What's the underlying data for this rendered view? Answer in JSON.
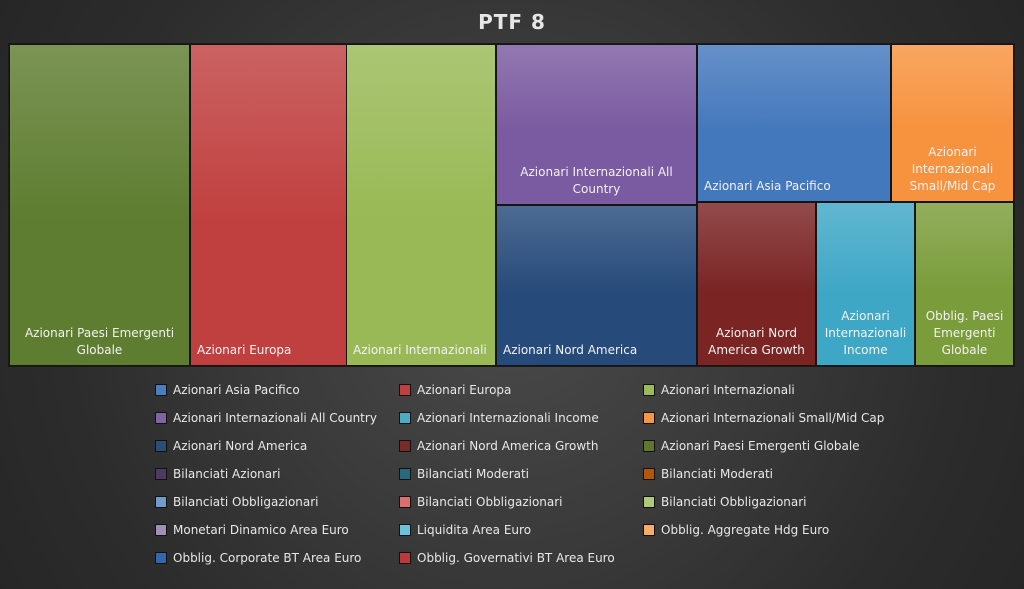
{
  "chart_data": {
    "type": "treemap",
    "title": "PTF 8",
    "items": [
      {
        "label": "Azionari Paesi Emergenti Globale",
        "value": 18.0,
        "color": "#5e7d30"
      },
      {
        "label": "Azionari Europa",
        "value": 15.6,
        "color": "#c0403f"
      },
      {
        "label": "Azionari Internazionali",
        "value": 14.9,
        "color": "#98b955"
      },
      {
        "label": "Azionari Internazionali All Country",
        "value": 10.0,
        "color": "#7a5aa0"
      },
      {
        "label": "Azionari Nord America",
        "value": 10.0,
        "color": "#264a7a"
      },
      {
        "label": "Azionari Asia Pacifico",
        "value": 9.5,
        "color": "#4478bc"
      },
      {
        "label": "Azionari Internazionali Small/Mid Cap",
        "value": 6.0,
        "color": "#f7923f"
      },
      {
        "label": "Azionari Nord America Growth",
        "value": 6.0,
        "color": "#7a2424"
      },
      {
        "label": "Azionari Internazionali Income",
        "value": 5.0,
        "color": "#3ea7c6"
      },
      {
        "label": "Obblig. Paesi Emergenti Globale",
        "value": 5.0,
        "color": "#7a9c3a"
      }
    ],
    "legend": [
      {
        "label": "Azionari Asia Pacifico",
        "color": "#4a7ebf"
      },
      {
        "label": "Azionari Europa",
        "color": "#c0403f"
      },
      {
        "label": "Azionari Internazionali",
        "color": "#9bbb59"
      },
      {
        "label": "Azionari Internazionali All Country",
        "color": "#8064a2"
      },
      {
        "label": "Azionari Internazionali Income",
        "color": "#4bacc6"
      },
      {
        "label": "Azionari Internazionali Small/Mid Cap",
        "color": "#f79646"
      },
      {
        "label": "Azionari Nord America",
        "color": "#2c4d75"
      },
      {
        "label": "Azionari Nord America Growth",
        "color": "#772c2a"
      },
      {
        "label": "Azionari Paesi Emergenti Globale",
        "color": "#5f7530"
      },
      {
        "label": "Bilanciati Azionari",
        "color": "#4d3b62"
      },
      {
        "label": "Bilanciati Moderati",
        "color": "#276a7c"
      },
      {
        "label": "Bilanciati Moderati",
        "color": "#b65708"
      },
      {
        "label": "Bilanciati Obbligazionari",
        "color": "#729aca"
      },
      {
        "label": "Bilanciati Obbligazionari",
        "color": "#d9706e"
      },
      {
        "label": "Bilanciati Obbligazionari",
        "color": "#afc97a"
      },
      {
        "label": "Monetari Dinamico Area Euro",
        "color": "#a18fb5"
      },
      {
        "label": "Liquidita Area Euro",
        "color": "#6cc3d9"
      },
      {
        "label": "Obblig. Aggregate Hdg Euro",
        "color": "#f9ab6b"
      },
      {
        "label": "Obblig. Corporate BT Area Euro",
        "color": "#3366aa"
      },
      {
        "label": "Obblig. Governativi BT Area Euro",
        "color": "#b93a3a"
      }
    ]
  }
}
